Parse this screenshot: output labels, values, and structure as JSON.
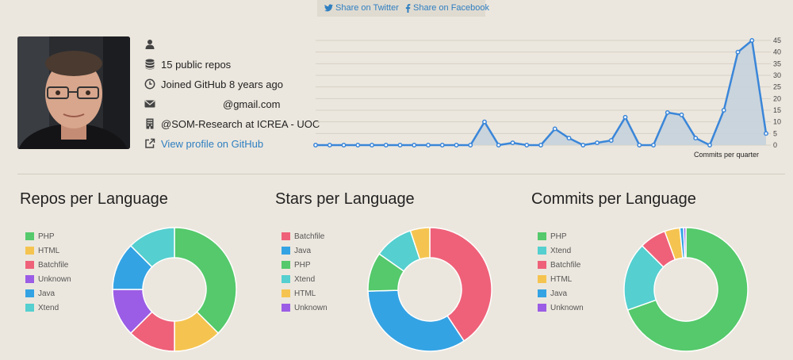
{
  "share": {
    "twitter_label": "Share on Twitter",
    "facebook_label": "Share on Facebook"
  },
  "profile": {
    "repos": "15 public repos",
    "joined": "Joined GitHub 8 years ago",
    "email": "@gmail.com",
    "company": "@SOM-Research at ICREA - UOC",
    "profile_link": "View profile on GitHub",
    "icons": [
      "user-icon",
      "database-icon",
      "clock-icon",
      "envelope-icon",
      "building-icon",
      "external-link-icon"
    ]
  },
  "commits_chart": {
    "chart_data": {
      "type": "area",
      "xlabel": "Commits per quarter",
      "ylim": [
        0,
        45
      ],
      "ytick_labels": [
        "45",
        "40",
        "35",
        "30",
        "25",
        "20",
        "15",
        "10",
        "5",
        "0"
      ],
      "values": [
        0,
        0,
        0,
        0,
        0,
        0,
        0,
        0,
        0,
        0,
        0,
        0,
        10,
        0,
        1,
        0,
        0,
        7,
        3,
        0,
        1,
        2,
        12,
        0,
        0,
        14,
        13,
        3,
        0,
        15,
        40,
        45,
        5
      ],
      "color": "#3a86d9",
      "fill": "#c6d1dc"
    }
  },
  "pies": [
    {
      "title": "Repos per Language",
      "chart_data": {
        "type": "pie",
        "labels": [
          "PHP",
          "HTML",
          "Batchfile",
          "Unknown",
          "Java",
          "Xtend"
        ],
        "values": [
          6,
          2,
          2,
          2,
          2,
          2
        ],
        "colors": [
          "#55c96b",
          "#f5c450",
          "#ef6179",
          "#9b5de5",
          "#34a3e4",
          "#55cfcf"
        ]
      }
    },
    {
      "title": "Stars per Language",
      "chart_data": {
        "type": "pie",
        "labels": [
          "Batchfile",
          "Java",
          "PHP",
          "Xtend",
          "HTML",
          "Unknown"
        ],
        "values": [
          12,
          10,
          3,
          3,
          1.5,
          0
        ],
        "colors": [
          "#ef6179",
          "#34a3e4",
          "#55c96b",
          "#55cfcf",
          "#f5c450",
          "#9b5de5"
        ]
      }
    },
    {
      "title": "Commits per Language",
      "chart_data": {
        "type": "pie",
        "labels": [
          "PHP",
          "Xtend",
          "Batchfile",
          "HTML",
          "Java",
          "Unknown"
        ],
        "values": [
          70,
          18,
          7,
          4,
          1,
          0.6
        ],
        "colors": [
          "#55c96b",
          "#55cfcf",
          "#ef6179",
          "#f5c450",
          "#34a3e4",
          "#9b5de5"
        ]
      }
    }
  ]
}
